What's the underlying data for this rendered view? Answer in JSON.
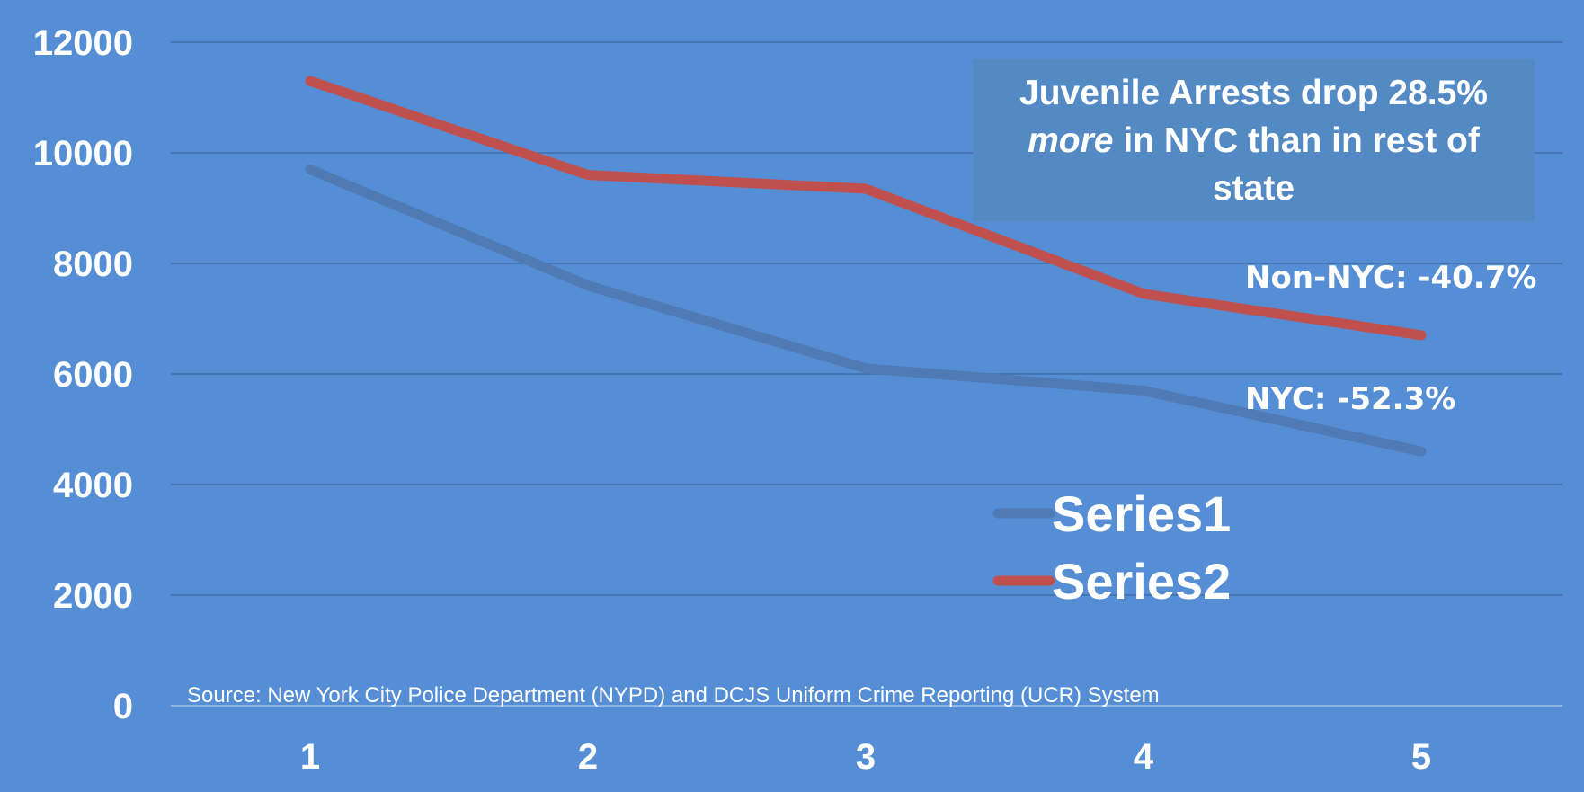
{
  "chart_data": {
    "type": "line",
    "title": "",
    "xlabel": "",
    "ylabel": "",
    "x": [
      1,
      2,
      3,
      4,
      5
    ],
    "ylim": [
      0,
      12000
    ],
    "yticks": [
      0,
      2000,
      4000,
      6000,
      8000,
      10000,
      12000
    ],
    "grid": true,
    "legend_position": "center-right",
    "series": [
      {
        "name": "Series1",
        "values": [
          9700,
          7600,
          6100,
          5700,
          4600
        ],
        "color": "#4f7ab3"
      },
      {
        "name": "Series2",
        "values": [
          11300,
          9600,
          9350,
          7450,
          6700
        ],
        "color": "#c0504d"
      }
    ],
    "annotations": {
      "headline_before": "Juvenile Arrests drop 28.5% ",
      "headline_emphasis": "more",
      "headline_after": " in NYC than in rest of state",
      "non_nyc_label": "Non-NYC: -40.7%",
      "nyc_label": "NYC: -52.3%",
      "source": "Source: New York City Police Department (NYPD) and DCJS Uniform Crime Reporting (UCR) System"
    },
    "colors": {
      "background": "#558ed5",
      "gridline": "#3f6fa8",
      "annotation_box": "#538ac4"
    }
  }
}
